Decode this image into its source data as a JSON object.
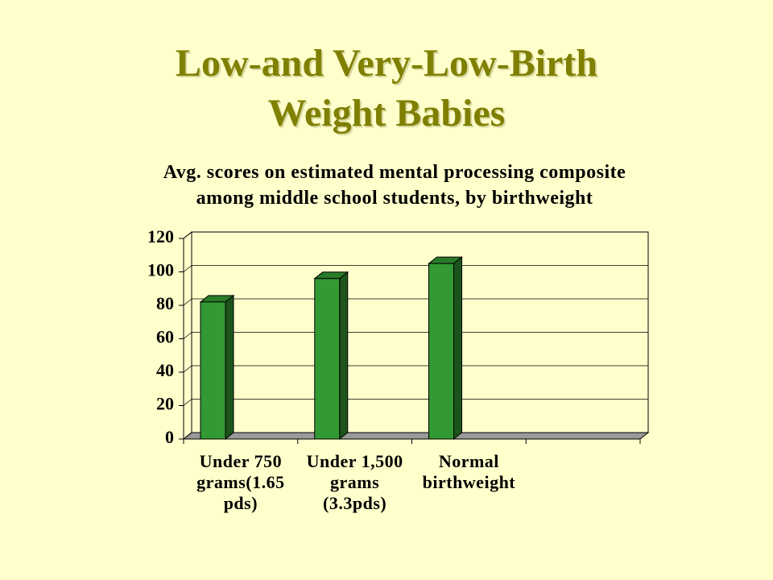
{
  "slide_title": "Low-and Very-Low-Birth\nWeight Babies",
  "chart_data": {
    "type": "bar3d",
    "title": "Avg. scores on estimated mental processing composite\namong middle school students, by birthweight",
    "categories": [
      "Under 750\ngrams(1.65\npds)",
      "Under 1,500\ngrams\n(3.3pds)",
      "Normal\nbirthweight",
      null
    ],
    "values": [
      82,
      96,
      105,
      null
    ],
    "color": "#339933",
    "ylim": [
      0,
      120
    ],
    "yticks": [
      0,
      20,
      40,
      60,
      80,
      100,
      120
    ],
    "grid": true
  }
}
